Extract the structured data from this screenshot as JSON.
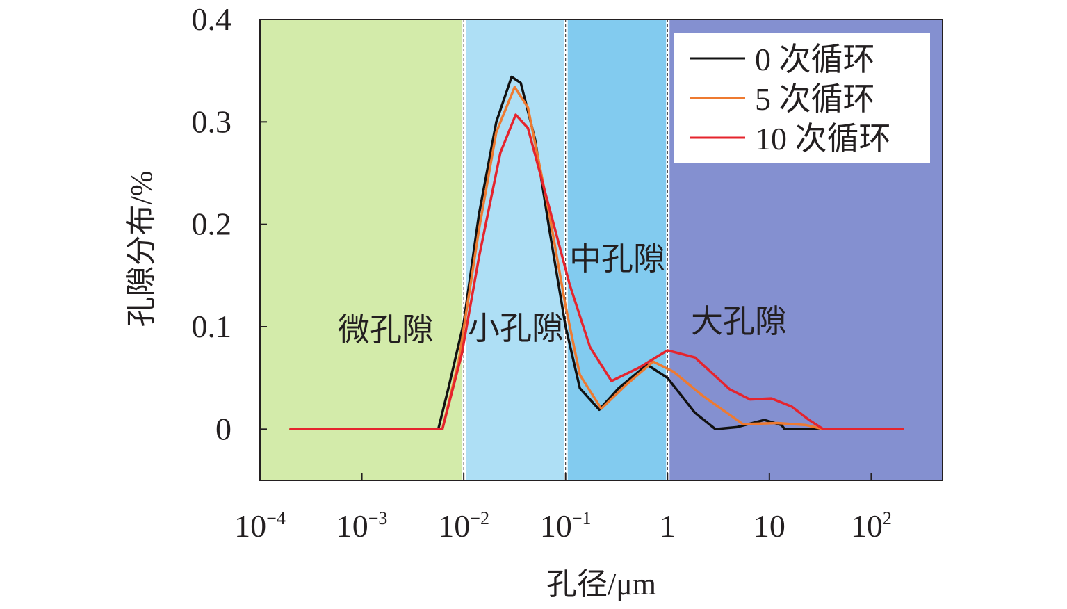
{
  "chart_data": {
    "type": "line",
    "xscale": "log",
    "xlabel": "孔径/μm",
    "ylabel": "孔隙分布/%",
    "xlim_log10": [
      -4,
      2.7
    ],
    "ylim": [
      -0.05,
      0.4
    ],
    "x_ticks": [
      {
        "log": -4,
        "base": "10",
        "exp": "−4"
      },
      {
        "log": -3,
        "base": "10",
        "exp": "−3"
      },
      {
        "log": -2,
        "base": "10",
        "exp": "−2"
      },
      {
        "log": -1,
        "base": "10",
        "exp": "−1"
      },
      {
        "log": 0,
        "base": "1",
        "exp": ""
      },
      {
        "log": 1,
        "base": "10",
        "exp": ""
      },
      {
        "log": 2,
        "base": "10",
        "exp": "2"
      }
    ],
    "y_ticks": [
      {
        "value": 0,
        "label": "0"
      },
      {
        "value": 0.1,
        "label": "0.1"
      },
      {
        "value": 0.2,
        "label": "0.2"
      },
      {
        "value": 0.3,
        "label": "0.3"
      },
      {
        "value": 0.4,
        "label": "0.4"
      }
    ],
    "regions": [
      {
        "label": "微孔隙",
        "from_log": -4,
        "to_log": -2,
        "color": "#d3ebaa"
      },
      {
        "label": "小孔隙",
        "from_log": -2,
        "to_log": -1,
        "color": "#aedff5"
      },
      {
        "label": "中孔隙",
        "from_log": -1,
        "to_log": 0,
        "color": "#82cbef"
      },
      {
        "label": "大孔隙",
        "from_log": 0,
        "to_log": 2.7,
        "color": "#8490d0"
      }
    ],
    "legend_position": "top-right",
    "series": [
      {
        "name": "0 次循环",
        "color": "#111111",
        "points_log10x_y": [
          [
            -3.7,
            0
          ],
          [
            -2.25,
            0
          ],
          [
            -2.15,
            0.04
          ],
          [
            -2.0,
            0.104
          ],
          [
            -1.85,
            0.21
          ],
          [
            -1.68,
            0.3
          ],
          [
            -1.53,
            0.344
          ],
          [
            -1.44,
            0.338
          ],
          [
            -1.3,
            0.283
          ],
          [
            -1.16,
            0.195
          ],
          [
            -1.0,
            0.1
          ],
          [
            -0.86,
            0.04
          ],
          [
            -0.67,
            0.019
          ],
          [
            -0.48,
            0.04
          ],
          [
            -0.2,
            0.063
          ],
          [
            0,
            0.05
          ],
          [
            0.27,
            0.016
          ],
          [
            0.47,
            0
          ],
          [
            0.68,
            0.002
          ],
          [
            0.95,
            0.009
          ],
          [
            1.12,
            0.004
          ],
          [
            1.15,
            0
          ],
          [
            2.31,
            0
          ]
        ]
      },
      {
        "name": "5 次循环",
        "color": "#ee7a30",
        "points_log10x_y": [
          [
            -3.7,
            0
          ],
          [
            -2.21,
            0
          ],
          [
            -2.05,
            0.066
          ],
          [
            -1.85,
            0.195
          ],
          [
            -1.68,
            0.29
          ],
          [
            -1.5,
            0.334
          ],
          [
            -1.37,
            0.314
          ],
          [
            -1.16,
            0.21
          ],
          [
            -1.0,
            0.12
          ],
          [
            -0.86,
            0.053
          ],
          [
            -0.65,
            0.02
          ],
          [
            -0.41,
            0.043
          ],
          [
            -0.14,
            0.066
          ],
          [
            0.06,
            0.056
          ],
          [
            0.34,
            0.033
          ],
          [
            0.74,
            0.005
          ],
          [
            1.08,
            0.006
          ],
          [
            1.36,
            0.004
          ],
          [
            1.53,
            0
          ],
          [
            2.31,
            0
          ]
        ]
      },
      {
        "name": "10 次循环",
        "color": "#e5242d",
        "points_log10x_y": [
          [
            -3.7,
            0
          ],
          [
            -2.21,
            0
          ],
          [
            -2.02,
            0.073
          ],
          [
            -1.85,
            0.168
          ],
          [
            -1.64,
            0.27
          ],
          [
            -1.49,
            0.307
          ],
          [
            -1.37,
            0.294
          ],
          [
            -1.16,
            0.216
          ],
          [
            -0.96,
            0.141
          ],
          [
            -0.76,
            0.08
          ],
          [
            -0.55,
            0.047
          ],
          [
            -0.28,
            0.06
          ],
          [
            0,
            0.077
          ],
          [
            0.27,
            0.07
          ],
          [
            0.61,
            0.039
          ],
          [
            0.81,
            0.029
          ],
          [
            1.02,
            0.03
          ],
          [
            1.22,
            0.022
          ],
          [
            1.39,
            0.009
          ],
          [
            1.53,
            0
          ],
          [
            2.31,
            0
          ]
        ]
      }
    ]
  }
}
